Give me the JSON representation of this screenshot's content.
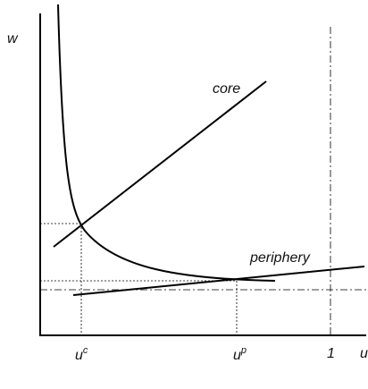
{
  "axes": {
    "y_label": "w",
    "x_label": "u"
  },
  "lines": {
    "core": "core",
    "periphery": "periphery"
  },
  "x_marks": [
    {
      "base": "u",
      "sup": "c"
    },
    {
      "base": "u",
      "sup": "p"
    },
    {
      "base": "1"
    }
  ]
}
